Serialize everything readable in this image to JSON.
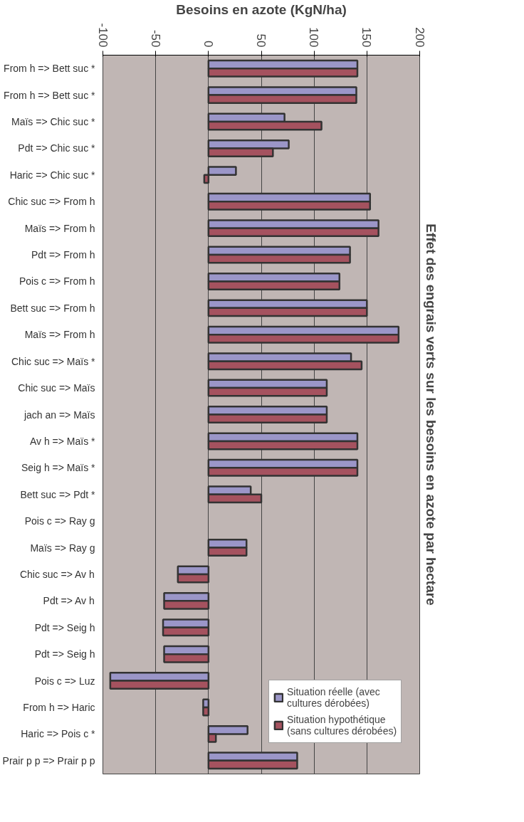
{
  "chart_data": {
    "type": "bar",
    "orientation": "horizontal",
    "title": "Effet des engrais verts sur les besoins en azote par hectare",
    "xlabel": "Besoins en azote (KgN/ha)",
    "categories": [
      "From h => Bett suc *",
      "From h => Bett suc *",
      "Maïs => Chic suc *",
      "Pdt => Chic suc *",
      "Haric => Chic suc *",
      "Chic suc => From h",
      "Maïs => From h",
      "Pdt => From h",
      "Pois c => From h",
      "Bett suc => From h",
      "Maïs => From h",
      "Chic suc => Maïs *",
      "Chic suc => Maïs",
      "jach an => Maïs",
      "Av h => Maïs *",
      "Seig h => Maïs *",
      "Bett suc => Pdt *",
      "Pois c => Ray g",
      "Maïs => Ray g",
      "Chic suc => Av h",
      "Pdt => Av h",
      "Pdt => Seig h",
      "Pdt => Seig h",
      "Pois c => Luz",
      "From h => Haric",
      "Haric => Pois c *",
      "Prair p p => Prair p p"
    ],
    "series": [
      {
        "name": "Situation réelle (avec cultures dérobées)",
        "color": "#9b96c8",
        "values": [
          141,
          140,
          72,
          76,
          26,
          153,
          161,
          134,
          124,
          150,
          180,
          135,
          112,
          112,
          141,
          141,
          40,
          null,
          36,
          -29,
          -42,
          -43,
          -42,
          -93,
          -5,
          37,
          84
        ]
      },
      {
        "name": "Situation hypothétique (sans cultures dérobées)",
        "color": "#a5525f",
        "values": [
          141,
          140,
          107,
          61,
          -4,
          153,
          161,
          134,
          124,
          150,
          180,
          145,
          112,
          112,
          141,
          141,
          50,
          null,
          36,
          -29,
          -42,
          -43,
          -42,
          -93,
          -5,
          7,
          84
        ]
      }
    ],
    "xlim": [
      -100,
      200
    ],
    "xticks": [
      -100,
      -50,
      0,
      50,
      100,
      150,
      200
    ],
    "grid": "x",
    "legend": "bottom right"
  }
}
